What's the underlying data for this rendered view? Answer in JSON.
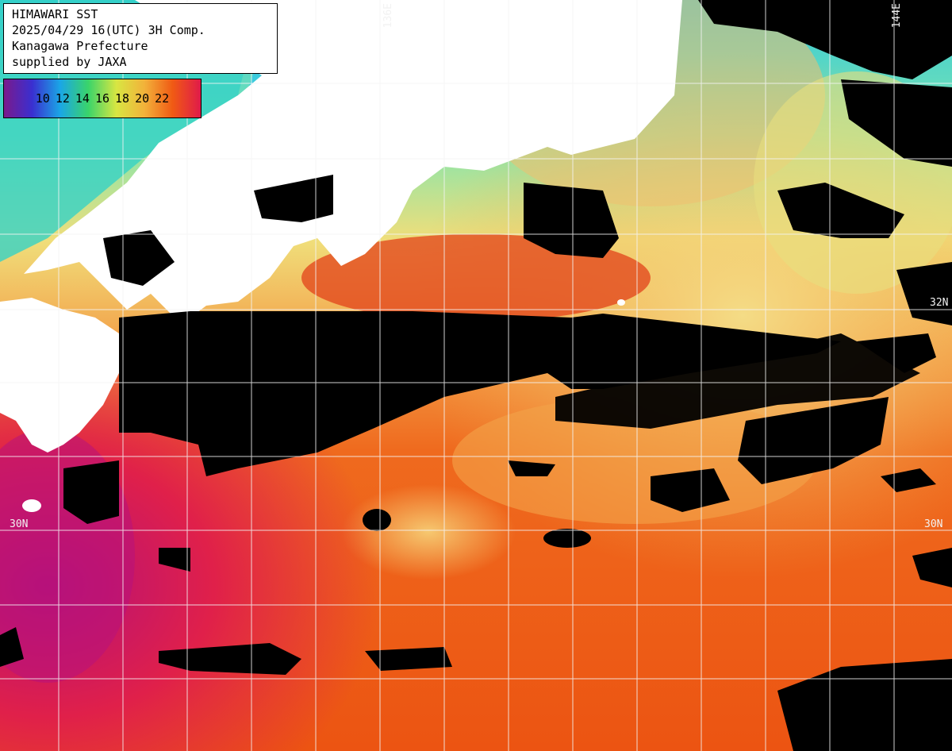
{
  "info": {
    "line1": "HIMAWARI SST",
    "line2": "2025/04/29 16(UTC) 3H Comp.",
    "line3": "Kanagawa Prefecture",
    "line4": "supplied by JAXA"
  },
  "colorbar": {
    "ticks": [
      "10",
      "12",
      "14",
      "16",
      "18",
      "20",
      "22"
    ],
    "colors": [
      "#7a1a8c",
      "#3a2fd0",
      "#1aa6e6",
      "#3ad46a",
      "#d8e642",
      "#f2b23a",
      "#f05a14",
      "#e01a4a"
    ]
  },
  "grid": {
    "lon_labels": [
      "136E",
      "144E"
    ],
    "lat_labels": [
      "30N",
      "30N",
      "32N"
    ]
  },
  "map_colors": {
    "land": "#ffffff",
    "no_data": "#000000",
    "cold_water": "#7de6b0",
    "warm_water": "#ec5a12"
  }
}
